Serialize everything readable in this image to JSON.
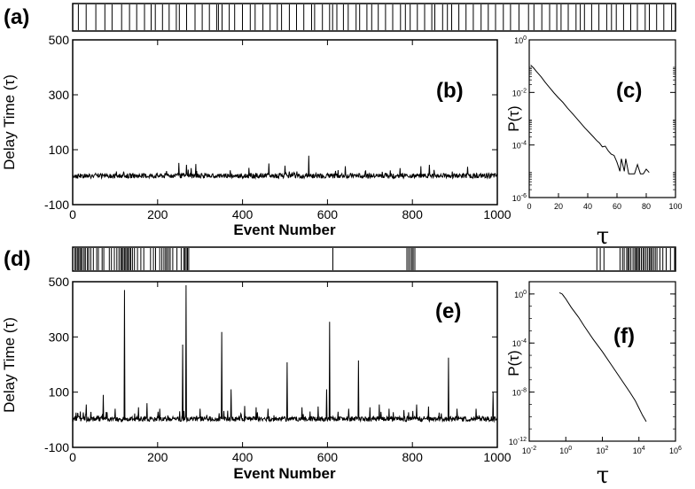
{
  "colors": {
    "line": "#000000",
    "background": "#ffffff"
  },
  "chart_data": [
    {
      "id": "a",
      "type": "event-raster",
      "panel_label": "(a)",
      "x_range": [
        0,
        1000
      ],
      "events": [
        8,
        21,
        37,
        52,
        64,
        80,
        93,
        105,
        118,
        129,
        136,
        148,
        159,
        171,
        176,
        188,
        202,
        214,
        226,
        238,
        241,
        247,
        259,
        268,
        281,
        294,
        302,
        315,
        327,
        339,
        346,
        359,
        371,
        383,
        396,
        401,
        414,
        426,
        431,
        438,
        449,
        457,
        470,
        476,
        488,
        496,
        507,
        519,
        531,
        544,
        552,
        560,
        572,
        584,
        596,
        601,
        614,
        622,
        629,
        641,
        653,
        665,
        678,
        690,
        702,
        715,
        727,
        741,
        757,
        766,
        779,
        792,
        804,
        811,
        823,
        836,
        843,
        850,
        862,
        874,
        887,
        895,
        903,
        915,
        927,
        938,
        951,
        958,
        970,
        982,
        995
      ]
    },
    {
      "id": "b",
      "type": "line",
      "panel_label": "(b)",
      "xlabel": "Event Number",
      "ylabel": "Delay Time (τ)",
      "xlim": [
        0,
        1000
      ],
      "ylim": [
        -100,
        500
      ],
      "xticks": [
        0,
        200,
        400,
        600,
        800,
        1000
      ],
      "yticks": [
        -100,
        100,
        300,
        500
      ],
      "n_points": 1000,
      "baseline": 5,
      "spikes": [
        [
          250,
          52
        ],
        [
          268,
          45
        ],
        [
          290,
          48
        ],
        [
          462,
          50
        ],
        [
          500,
          42
        ],
        [
          556,
          78
        ],
        [
          642,
          40
        ],
        [
          820,
          40
        ],
        [
          840,
          45
        ],
        [
          930,
          38
        ]
      ]
    },
    {
      "id": "c",
      "type": "line",
      "panel_label": "(c)",
      "xlabel": "τ",
      "ylabel": "P(τ)",
      "xlim": [
        0,
        100
      ],
      "ylim_exp": [
        -6,
        0
      ],
      "yscale": "log",
      "xticks": [
        0,
        20,
        40,
        60,
        80,
        100
      ],
      "ytick_exps": [
        -6,
        -4,
        -2,
        0
      ],
      "points": [
        [
          1,
          0.11
        ],
        [
          3,
          0.085
        ],
        [
          5,
          0.062
        ],
        [
          8,
          0.04
        ],
        [
          11,
          0.024
        ],
        [
          14,
          0.015
        ],
        [
          17,
          0.0095
        ],
        [
          20,
          0.0062
        ],
        [
          23,
          0.0042
        ],
        [
          26,
          0.0026
        ],
        [
          29,
          0.0017
        ],
        [
          32,
          0.0011
        ],
        [
          35,
          0.0007
        ],
        [
          38,
          0.00045
        ],
        [
          41,
          0.0003
        ],
        [
          44,
          0.0002
        ],
        [
          46,
          0.00015
        ],
        [
          48,
          0.00012
        ],
        [
          50,
          8.5e-05
        ],
        [
          52,
          9e-05
        ],
        [
          54,
          6e-05
        ],
        [
          56,
          4.5e-05
        ],
        [
          58,
          4e-05
        ],
        [
          60,
          2.2e-05
        ],
        [
          62,
          1e-05
        ],
        [
          63,
          3e-05
        ],
        [
          65,
          1e-05
        ],
        [
          66,
          3e-05
        ],
        [
          68,
          8e-06
        ],
        [
          70,
          8e-06
        ],
        [
          72,
          8e-06
        ],
        [
          74,
          1.8e-05
        ],
        [
          76,
          8e-06
        ],
        [
          78,
          8e-06
        ],
        [
          80,
          1.2e-05
        ],
        [
          82,
          9e-06
        ]
      ]
    },
    {
      "id": "d",
      "type": "event-raster",
      "panel_label": "(d)",
      "x_range": [
        0,
        1000
      ],
      "events": [
        3,
        6,
        9,
        12,
        15,
        18,
        21,
        25,
        28,
        33,
        36,
        41,
        47,
        55,
        59,
        68,
        72,
        85,
        90,
        97,
        103,
        108,
        112,
        115,
        118,
        121,
        124,
        127,
        130,
        133,
        136,
        140,
        145,
        152,
        160,
        167,
        183,
        190,
        195,
        205,
        210,
        215,
        219,
        222,
        226,
        230,
        236,
        246,
        256,
        262,
        265,
        268,
        271,
        274,
        617,
        793,
        797,
        801,
        805,
        808,
        812,
        1245,
        1253,
        1262,
        1300,
        1306,
        1310,
        1316,
        1319,
        1322,
        1326,
        1331,
        1335,
        1338,
        1341,
        1344,
        1347,
        1351,
        1355,
        1358,
        1362,
        1366,
        1370,
        1373,
        1376,
        1380,
        1384,
        1388,
        1395,
        1402,
        1410,
        1420,
        1430
      ]
    },
    {
      "id": "e",
      "type": "line",
      "panel_label": "(e)",
      "xlabel": "Event Number",
      "ylabel": "Delay Time (τ)",
      "xlim": [
        0,
        1000
      ],
      "ylim": [
        -100,
        500
      ],
      "xticks": [
        0,
        200,
        400,
        600,
        800,
        1000
      ],
      "yticks": [
        -100,
        100,
        300,
        500
      ],
      "n_points": 1000,
      "baseline": 3,
      "spikes": [
        [
          18,
          30
        ],
        [
          32,
          55
        ],
        [
          72,
          90
        ],
        [
          100,
          40
        ],
        [
          122,
          470
        ],
        [
          155,
          45
        ],
        [
          175,
          60
        ],
        [
          205,
          40
        ],
        [
          259,
          272
        ],
        [
          267,
          487
        ],
        [
          300,
          40
        ],
        [
          351,
          318
        ],
        [
          373,
          110
        ],
        [
          405,
          50
        ],
        [
          432,
          45
        ],
        [
          460,
          40
        ],
        [
          505,
          208
        ],
        [
          540,
          45
        ],
        [
          578,
          48
        ],
        [
          598,
          110
        ],
        [
          605,
          355
        ],
        [
          650,
          40
        ],
        [
          673,
          215
        ],
        [
          700,
          45
        ],
        [
          722,
          55
        ],
        [
          745,
          40
        ],
        [
          780,
          35
        ],
        [
          810,
          55
        ],
        [
          838,
          48
        ],
        [
          885,
          225
        ],
        [
          905,
          40
        ],
        [
          950,
          40
        ],
        [
          990,
          100
        ]
      ]
    },
    {
      "id": "f",
      "type": "line",
      "panel_label": "(f)",
      "xlabel": "τ",
      "ylabel": "P(τ)",
      "xscale": "log",
      "yscale": "log",
      "xlim_exp": [
        -2,
        6
      ],
      "ylim_exp": [
        -12,
        1
      ],
      "xtick_exps": [
        -2,
        0,
        2,
        4,
        6
      ],
      "ytick_exps": [
        -12,
        -8,
        -4,
        0
      ],
      "points_exp": [
        [
          -0.35,
          0.1
        ],
        [
          -0.2,
          0.0
        ],
        [
          0.0,
          -0.4
        ],
        [
          0.3,
          -1.1
        ],
        [
          0.7,
          -1.9
        ],
        [
          1.0,
          -2.6
        ],
        [
          1.5,
          -3.7
        ],
        [
          2.0,
          -4.7
        ],
        [
          2.5,
          -5.8
        ],
        [
          3.0,
          -6.9
        ],
        [
          3.5,
          -8.0
        ],
        [
          3.8,
          -8.7
        ],
        [
          4.0,
          -9.3
        ],
        [
          4.2,
          -9.9
        ],
        [
          4.4,
          -10.4
        ]
      ]
    }
  ]
}
